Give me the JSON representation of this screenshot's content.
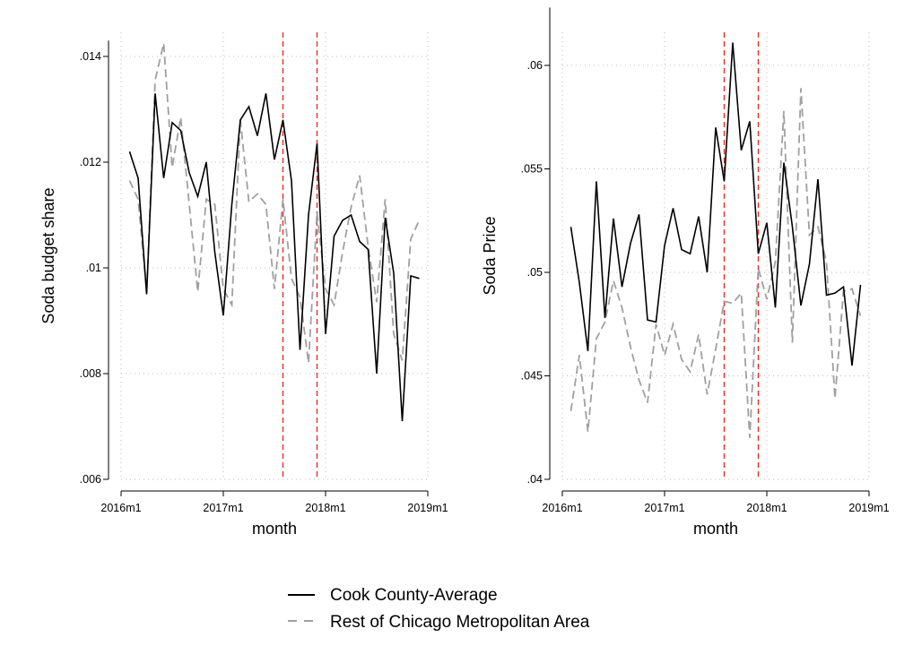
{
  "legend": {
    "position": "bottom-center",
    "entries": [
      {
        "label": "Cook County-Average",
        "color": "#000000",
        "dash": "solid"
      },
      {
        "label": "Rest of Chicago Metropolitan Area",
        "color": "#a0a0a0",
        "dash": "dashed"
      }
    ]
  },
  "colors": {
    "cook": "#000000",
    "rest": "#a0a0a0",
    "policy_lines": "#e8211b",
    "grid": "#bbbbbb"
  },
  "chart_data": [
    {
      "type": "line",
      "xlabel": "month",
      "ylabel": "Soda budget share",
      "x_ticks": [
        {
          "v": 0,
          "label": "2016m1"
        },
        {
          "v": 12,
          "label": "2017m1"
        },
        {
          "v": 24,
          "label": "2018m1"
        },
        {
          "v": 36,
          "label": "2019m1"
        }
      ],
      "y_ticks": [
        {
          "v": 0.006,
          "label": ".006"
        },
        {
          "v": 0.008,
          "label": ".008"
        },
        {
          "v": 0.01,
          "label": ".01"
        },
        {
          "v": 0.012,
          "label": ".012"
        },
        {
          "v": 0.014,
          "label": ".014"
        }
      ],
      "xlim": [
        0,
        36
      ],
      "ylim": [
        0.006,
        0.0143
      ],
      "grid": true,
      "vlines": [
        19,
        23
      ],
      "x": [
        1,
        2,
        3,
        4,
        5,
        6,
        7,
        8,
        9,
        10,
        11,
        12,
        13,
        14,
        15,
        16,
        17,
        18,
        19,
        20,
        21,
        22,
        23,
        24,
        25,
        26,
        27,
        28,
        29,
        30,
        31,
        32,
        33,
        34,
        35
      ],
      "series": [
        {
          "name": "Cook County-Average",
          "style": "solid",
          "values": [
            0.0122,
            0.0117,
            0.0095,
            0.0133,
            0.0117,
            0.01275,
            0.0126,
            0.0118,
            0.01135,
            0.012,
            0.0103,
            0.0091,
            0.0112,
            0.0128,
            0.01305,
            0.0125,
            0.0133,
            0.01205,
            0.0128,
            0.01165,
            0.00845,
            0.011,
            0.01235,
            0.00875,
            0.0106,
            0.0109,
            0.011,
            0.0105,
            0.01035,
            0.008,
            0.01095,
            0.0099,
            0.0071,
            0.00985,
            0.0098
          ]
        },
        {
          "name": "Rest of Chicago Metropolitan Area",
          "style": "dashed",
          "values": [
            0.01165,
            0.0113,
            0.00955,
            0.01355,
            0.01425,
            0.0119,
            0.01285,
            0.0112,
            0.00955,
            0.0113,
            0.0112,
            0.0096,
            0.0093,
            0.0128,
            0.01125,
            0.0114,
            0.0112,
            0.0096,
            0.0113,
            0.0098,
            0.00945,
            0.0082,
            0.01105,
            0.0096,
            0.0093,
            0.0103,
            0.01115,
            0.01175,
            0.0104,
            0.00935,
            0.0113,
            0.00875,
            0.00825,
            0.01055,
            0.0109
          ]
        }
      ]
    },
    {
      "type": "line",
      "xlabel": "month",
      "ylabel": "Soda Price",
      "x_ticks": [
        {
          "v": 0,
          "label": "2016m1"
        },
        {
          "v": 12,
          "label": "2017m1"
        },
        {
          "v": 24,
          "label": "2018m1"
        },
        {
          "v": 36,
          "label": "2019m1"
        }
      ],
      "y_ticks": [
        {
          "v": 0.04,
          "label": ".04"
        },
        {
          "v": 0.045,
          "label": ".045"
        },
        {
          "v": 0.05,
          "label": ".05"
        },
        {
          "v": 0.055,
          "label": ".055"
        },
        {
          "v": 0.06,
          "label": ".06"
        }
      ],
      "xlim": [
        0,
        36
      ],
      "ylim": [
        0.04,
        0.0628
      ],
      "grid": true,
      "vlines": [
        19,
        23
      ],
      "x": [
        1,
        2,
        3,
        4,
        5,
        6,
        7,
        8,
        9,
        10,
        11,
        12,
        13,
        14,
        15,
        16,
        17,
        18,
        19,
        20,
        21,
        22,
        23,
        24,
        25,
        26,
        27,
        28,
        29,
        30,
        31,
        32,
        33,
        34,
        35
      ],
      "series": [
        {
          "name": "Cook County-Average",
          "style": "solid",
          "values": [
            0.0522,
            0.0495,
            0.0462,
            0.0544,
            0.0478,
            0.0526,
            0.0493,
            0.0514,
            0.0528,
            0.0477,
            0.0476,
            0.0513,
            0.0531,
            0.0511,
            0.0509,
            0.0527,
            0.05,
            0.057,
            0.0544,
            0.0611,
            0.0559,
            0.0573,
            0.0509,
            0.0524,
            0.0483,
            0.0553,
            0.0522,
            0.0484,
            0.0504,
            0.0545,
            0.0489,
            0.049,
            0.0493,
            0.0455,
            0.0494
          ]
        },
        {
          "name": "Rest of Chicago Metropolitan Area",
          "style": "dashed",
          "values": [
            0.0433,
            0.046,
            0.0423,
            0.0468,
            0.0476,
            0.0496,
            0.0483,
            0.0464,
            0.0448,
            0.0437,
            0.0475,
            0.046,
            0.0475,
            0.0458,
            0.0452,
            0.047,
            0.0441,
            0.0463,
            0.0486,
            0.0485,
            0.049,
            0.042,
            0.0502,
            0.0487,
            0.0505,
            0.0578,
            0.0466,
            0.0589,
            0.0518,
            0.0522,
            0.0505,
            0.0439,
            0.0491,
            0.0492,
            0.0479
          ]
        }
      ]
    }
  ]
}
